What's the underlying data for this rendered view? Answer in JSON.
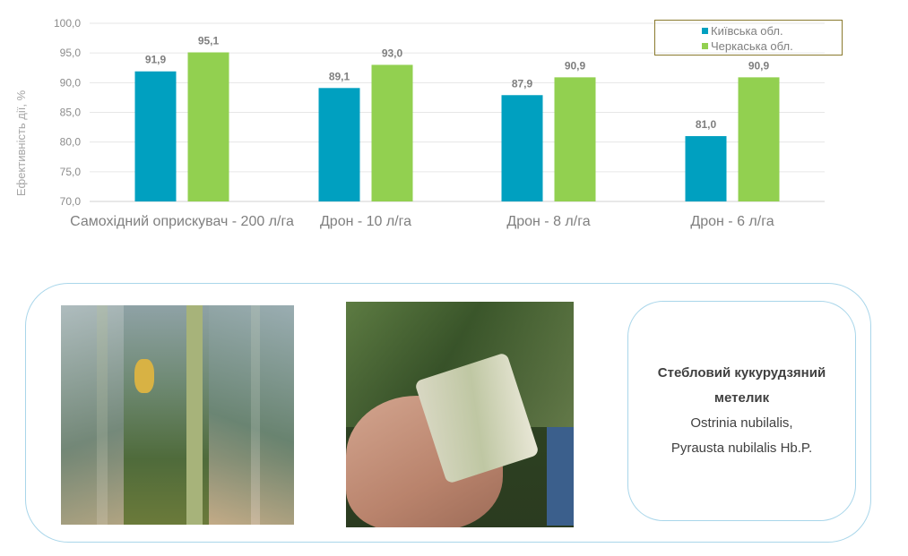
{
  "chart_data": {
    "type": "bar",
    "ylabel": "Ефективність дії, %",
    "ylim": [
      70,
      100
    ],
    "yticks": [
      "70,0",
      "75,0",
      "80,0",
      "85,0",
      "90,0",
      "95,0",
      "100,0"
    ],
    "categories": [
      "Самохідний оприскувач - 200 л/га",
      "Дрон - 10 л/га",
      "Дрон - 8 л/га",
      "Дрон - 6 л/га"
    ],
    "series": [
      {
        "name": "Київська обл.",
        "color": "#00a0c0",
        "values": [
          91.9,
          89.1,
          87.9,
          81.0
        ],
        "labels": [
          "91,9",
          "89,1",
          "87,9",
          "81,0"
        ]
      },
      {
        "name": "Черкаська обл.",
        "color": "#92d050",
        "values": [
          95.1,
          93.0,
          90.9,
          90.9
        ],
        "labels": [
          "95,1",
          "93,0",
          "90,9",
          "90,9"
        ]
      }
    ],
    "grid": true,
    "legend_position": "top-right"
  },
  "info": {
    "title_line1": "Стебловий кукурудзяний",
    "title_line2": "метелик",
    "latin1": "Ostrinia nubilalis,",
    "latin2": "Pyrausta nubilalis Hb.P."
  }
}
